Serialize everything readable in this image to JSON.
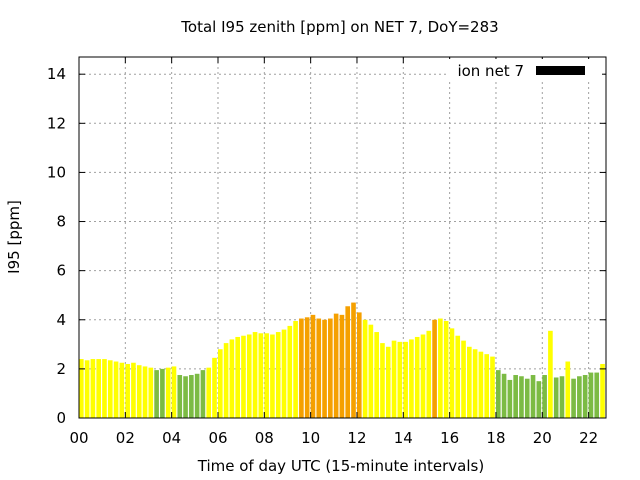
{
  "chart_data": {
    "type": "bar",
    "title": "Total I95 zenith [ppm] on NET 7, DoY=283",
    "xlabel": "Time of day UTC (15-minute intervals)",
    "ylabel": "I95 [ppm]",
    "xlim": [
      0,
      22.75
    ],
    "ylim": [
      0,
      14.7
    ],
    "xticks": [
      "00",
      "02",
      "04",
      "06",
      "08",
      "10",
      "12",
      "14",
      "16",
      "18",
      "20",
      "22"
    ],
    "yticks": [
      "0",
      "2",
      "4",
      "6",
      "8",
      "10",
      "12",
      "14"
    ],
    "grid": true,
    "legend": {
      "label": "ion net 7",
      "color": "#000000",
      "position": "top-right"
    },
    "colors": {
      "green": "#7cbb44",
      "yellow": "#ffff00",
      "orange": "#f5a000"
    },
    "bin_hours": 0.25,
    "values": [
      2.4,
      2.35,
      2.4,
      2.4,
      2.4,
      2.35,
      2.3,
      2.25,
      2.2,
      2.25,
      2.15,
      2.1,
      2.05,
      1.95,
      2.0,
      2.05,
      2.1,
      1.75,
      1.7,
      1.75,
      1.8,
      1.95,
      2.05,
      2.45,
      2.8,
      3.05,
      3.2,
      3.3,
      3.35,
      3.4,
      3.5,
      3.45,
      3.45,
      3.4,
      3.5,
      3.6,
      3.75,
      3.95,
      4.05,
      4.1,
      4.2,
      4.05,
      4.0,
      4.05,
      4.25,
      4.2,
      4.55,
      4.7,
      4.3,
      4.0,
      3.8,
      3.5,
      3.05,
      2.9,
      3.15,
      3.1,
      3.1,
      3.2,
      3.3,
      3.4,
      3.55,
      4.0,
      4.05,
      3.95,
      3.65,
      3.35,
      3.15,
      2.9,
      2.8,
      2.7,
      2.6,
      2.5,
      1.95,
      1.8,
      1.55,
      1.75,
      1.7,
      1.6,
      1.75,
      1.5,
      1.75,
      3.55,
      1.65,
      1.7,
      2.3,
      1.6,
      1.7,
      1.75,
      1.85,
      1.85,
      2.2
    ],
    "bar_colors": [
      "yellow",
      "yellow",
      "yellow",
      "yellow",
      "yellow",
      "yellow",
      "yellow",
      "yellow",
      "yellow",
      "yellow",
      "yellow",
      "yellow",
      "yellow",
      "green",
      "green",
      "yellow",
      "yellow",
      "green",
      "green",
      "green",
      "green",
      "green",
      "yellow",
      "yellow",
      "yellow",
      "yellow",
      "yellow",
      "yellow",
      "yellow",
      "yellow",
      "yellow",
      "yellow",
      "yellow",
      "yellow",
      "yellow",
      "yellow",
      "yellow",
      "yellow",
      "orange",
      "orange",
      "orange",
      "orange",
      "orange",
      "orange",
      "orange",
      "orange",
      "orange",
      "orange",
      "orange",
      "yellow",
      "yellow",
      "yellow",
      "yellow",
      "yellow",
      "yellow",
      "yellow",
      "yellow",
      "yellow",
      "yellow",
      "yellow",
      "yellow",
      "orange",
      "yellow",
      "yellow",
      "yellow",
      "yellow",
      "yellow",
      "yellow",
      "yellow",
      "yellow",
      "yellow",
      "yellow",
      "green",
      "green",
      "green",
      "green",
      "green",
      "green",
      "green",
      "green",
      "green",
      "yellow",
      "green",
      "green",
      "yellow",
      "green",
      "green",
      "green",
      "green",
      "green",
      "yellow"
    ]
  }
}
